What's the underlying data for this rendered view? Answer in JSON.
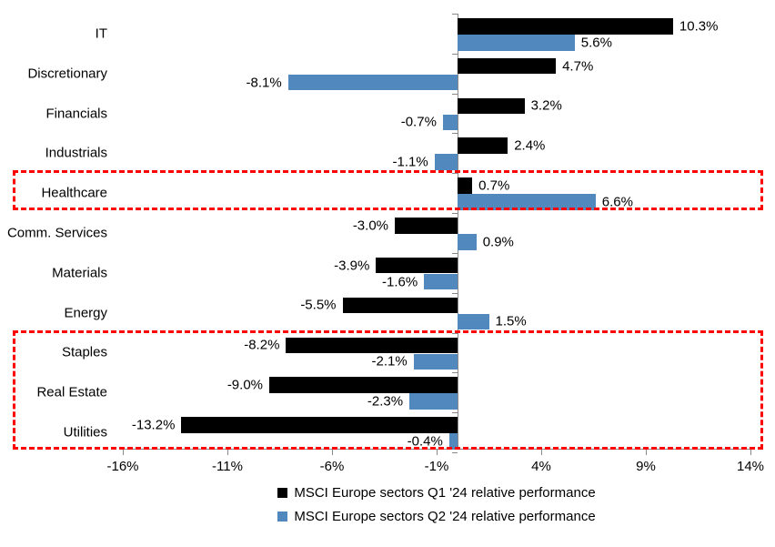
{
  "chart_data": {
    "type": "bar",
    "orientation": "horizontal",
    "categories": [
      "IT",
      "Discretionary",
      "Financials",
      "Industrials",
      "Healthcare",
      "Comm. Services",
      "Materials",
      "Energy",
      "Staples",
      "Real Estate",
      "Utilities"
    ],
    "series": [
      {
        "name": "MSCI Europe sectors Q1 '24 relative performance",
        "color": "#000000",
        "values": [
          10.3,
          4.7,
          3.2,
          2.4,
          0.7,
          -3.0,
          -3.9,
          -5.5,
          -8.2,
          -9.0,
          -13.2
        ],
        "labels": [
          "10.3%",
          "4.7%",
          "3.2%",
          "2.4%",
          "0.7%",
          "-3.0%",
          "-3.9%",
          "-5.5%",
          "-8.2%",
          "-9.0%",
          "-13.2%"
        ]
      },
      {
        "name": "MSCI Europe sectors Q2 '24 relative performance",
        "color": "#5189BE",
        "values": [
          5.6,
          -8.1,
          -0.7,
          -1.1,
          6.6,
          0.9,
          -1.6,
          1.5,
          -2.1,
          -2.3,
          -0.4
        ],
        "labels": [
          "5.6%",
          "-8.1%",
          "-0.7%",
          "-1.1%",
          "6.6%",
          "0.9%",
          "-1.6%",
          "1.5%",
          "-2.1%",
          "-2.3%",
          "-0.4%"
        ]
      }
    ],
    "x_ticks": [
      {
        "value": -16,
        "label": "-16%"
      },
      {
        "value": -11,
        "label": "-11%"
      },
      {
        "value": -6,
        "label": "-6%"
      },
      {
        "value": -1,
        "label": "-1%"
      },
      {
        "value": 4,
        "label": "4%"
      },
      {
        "value": 9,
        "label": "9%"
      },
      {
        "value": 14,
        "label": "14%"
      }
    ],
    "xlim": [
      -16,
      14
    ],
    "grid": false,
    "legend_position": "bottom",
    "axis_color": "#898989",
    "highlight_color": "#ff0000",
    "highlights": [
      {
        "name": "healthcare",
        "rows": [
          4,
          4
        ]
      },
      {
        "name": "defensives",
        "rows": [
          8,
          10
        ]
      }
    ]
  }
}
